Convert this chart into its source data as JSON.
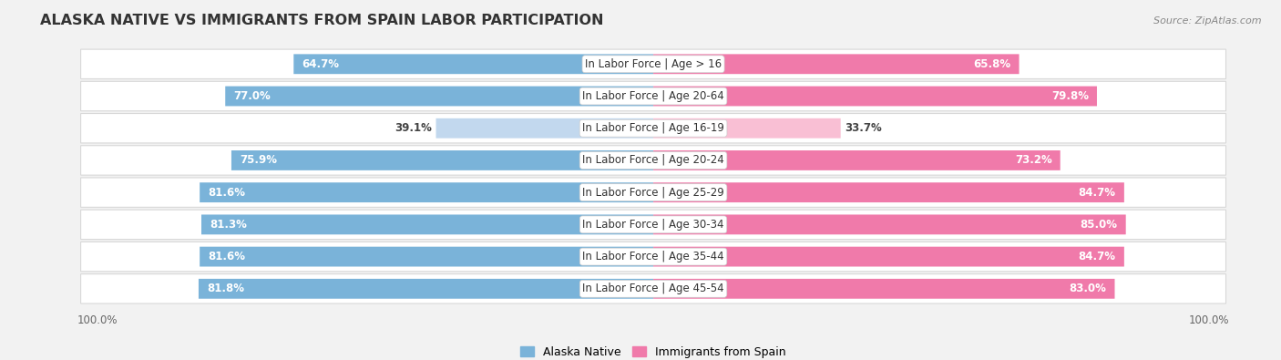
{
  "title": "Alaska Native vs Immigrants from Spain Labor Participation",
  "source": "Source: ZipAtlas.com",
  "categories": [
    "In Labor Force | Age > 16",
    "In Labor Force | Age 20-64",
    "In Labor Force | Age 16-19",
    "In Labor Force | Age 20-24",
    "In Labor Force | Age 25-29",
    "In Labor Force | Age 30-34",
    "In Labor Force | Age 35-44",
    "In Labor Force | Age 45-54"
  ],
  "alaska_values": [
    64.7,
    77.0,
    39.1,
    75.9,
    81.6,
    81.3,
    81.6,
    81.8
  ],
  "spain_values": [
    65.8,
    79.8,
    33.7,
    73.2,
    84.7,
    85.0,
    84.7,
    83.0
  ],
  "alaska_color_full": "#7ab3d9",
  "alaska_color_light": "#c2d8ee",
  "spain_color_full": "#f07aaa",
  "spain_color_light": "#f9bfd4",
  "bg_color": "#f2f2f2",
  "row_bg_color": "#ffffff",
  "row_border_color": "#d8d8d8",
  "max_value": 100.0,
  "bar_height": 0.62,
  "label_fontsize": 8.5,
  "title_fontsize": 11.5,
  "value_fontsize": 8.5,
  "legend_alaska": "Alaska Native",
  "legend_spain": "Immigrants from Spain"
}
